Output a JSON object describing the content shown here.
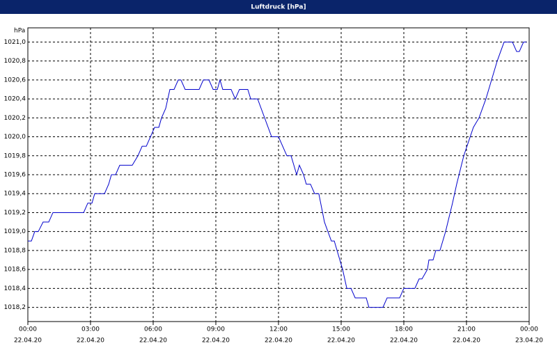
{
  "chart_data": {
    "type": "line",
    "title": "Luftdruck [hPa]",
    "y_label": "hPa",
    "color": "#0000cc",
    "grid": true,
    "xlim": [
      0,
      24
    ],
    "ylim": [
      1018.05,
      1021.15
    ],
    "xticks": [
      {
        "value": 0,
        "label": [
          "00:00",
          "22.04.20"
        ]
      },
      {
        "value": 3,
        "label": [
          "03:00",
          "22.04.20"
        ]
      },
      {
        "value": 6,
        "label": [
          "06:00",
          "22.04.20"
        ]
      },
      {
        "value": 9,
        "label": [
          "09:00",
          "22.04.20"
        ]
      },
      {
        "value": 12,
        "label": [
          "12:00",
          "22.04.20"
        ]
      },
      {
        "value": 15,
        "label": [
          "15:00",
          "22.04.20"
        ]
      },
      {
        "value": 18,
        "label": [
          "18:00",
          "22.04.20"
        ]
      },
      {
        "value": 21,
        "label": [
          "21:00",
          "22.04.20"
        ]
      },
      {
        "value": 24,
        "label": [
          "00:00",
          "23.04.20"
        ]
      }
    ],
    "yticks": [
      {
        "value": 1018.2,
        "label": "1018,2"
      },
      {
        "value": 1018.4,
        "label": "1018,4"
      },
      {
        "value": 1018.6,
        "label": "1018,6"
      },
      {
        "value": 1018.8,
        "label": "1018,8"
      },
      {
        "value": 1019.0,
        "label": "1019,0"
      },
      {
        "value": 1019.2,
        "label": "1019,2"
      },
      {
        "value": 1019.4,
        "label": "1019,4"
      },
      {
        "value": 1019.6,
        "label": "1019,6"
      },
      {
        "value": 1019.8,
        "label": "1019,8"
      },
      {
        "value": 1020.0,
        "label": "1020,0"
      },
      {
        "value": 1020.2,
        "label": "1020,2"
      },
      {
        "value": 1020.4,
        "label": "1020,4"
      },
      {
        "value": 1020.6,
        "label": "1020,6"
      },
      {
        "value": 1020.8,
        "label": "1020,8"
      },
      {
        "value": 1021.0,
        "label": "1021,0"
      }
    ],
    "x": [
      0,
      0.17,
      0.33,
      0.5,
      0.73,
      1.0,
      1.2,
      2.67,
      2.87,
      3.07,
      3.2,
      3.67,
      3.87,
      4.0,
      4.2,
      4.4,
      5.0,
      5.27,
      5.47,
      5.67,
      5.87,
      6.07,
      6.27,
      6.4,
      6.6,
      6.8,
      7.0,
      7.2,
      7.33,
      7.53,
      8.2,
      8.4,
      8.67,
      8.87,
      9.07,
      9.2,
      9.33,
      9.73,
      9.93,
      10.13,
      10.53,
      10.67,
      11.0,
      11.67,
      12.0,
      12.4,
      12.6,
      12.87,
      13.0,
      13.2,
      13.33,
      13.53,
      13.73,
      13.93,
      14.2,
      14.53,
      14.67,
      15.07,
      15.27,
      15.47,
      15.67,
      16.2,
      16.33,
      17.0,
      17.2,
      17.8,
      18.0,
      18.53,
      18.73,
      18.87,
      19.13,
      19.2,
      19.4,
      19.53,
      19.73,
      20.0,
      20.33,
      20.53,
      20.87,
      21.33,
      21.6,
      21.93,
      22.2,
      22.47,
      22.8,
      23.2,
      23.4,
      23.53,
      23.73,
      23.87
    ],
    "values": [
      1018.9,
      1018.9,
      1019.0,
      1019.0,
      1019.1,
      1019.1,
      1019.2,
      1019.2,
      1019.3,
      1019.3,
      1019.4,
      1019.4,
      1019.5,
      1019.6,
      1019.6,
      1019.7,
      1019.7,
      1019.8,
      1019.9,
      1019.9,
      1020.0,
      1020.1,
      1020.1,
      1020.2,
      1020.3,
      1020.5,
      1020.5,
      1020.6,
      1020.6,
      1020.5,
      1020.5,
      1020.6,
      1020.6,
      1020.5,
      1020.5,
      1020.6,
      1020.5,
      1020.5,
      1020.4,
      1020.5,
      1020.5,
      1020.4,
      1020.4,
      1020.0,
      1020.0,
      1019.8,
      1019.8,
      1019.6,
      1019.7,
      1019.6,
      1019.5,
      1019.5,
      1019.4,
      1019.4,
      1019.1,
      1018.9,
      1018.9,
      1018.6,
      1018.4,
      1018.4,
      1018.3,
      1018.3,
      1018.2,
      1018.2,
      1018.3,
      1018.3,
      1018.4,
      1018.4,
      1018.5,
      1018.5,
      1018.6,
      1018.7,
      1018.7,
      1018.8,
      1018.8,
      1019.0,
      1019.3,
      1019.5,
      1019.8,
      1020.1,
      1020.2,
      1020.4,
      1020.6,
      1020.8,
      1021.0,
      1021.0,
      1020.9,
      1020.9,
      1021.0,
      1021.0
    ]
  }
}
